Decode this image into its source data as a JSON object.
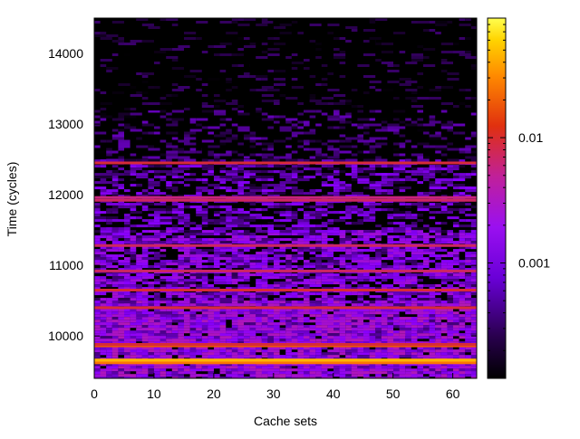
{
  "chart_data": {
    "type": "heatmap",
    "title": "",
    "xlabel": "Cache sets",
    "ylabel": "Time (cycles)",
    "xlim": [
      0,
      64
    ],
    "ylim": [
      9400,
      14500
    ],
    "x_ticks": [
      0,
      10,
      20,
      30,
      40,
      50,
      60
    ],
    "y_ticks": [
      10000,
      11000,
      12000,
      13000,
      14000
    ],
    "x_tick_labels": [
      "0",
      "10",
      "20",
      "30",
      "40",
      "50",
      "60"
    ],
    "y_tick_labels": [
      "10000",
      "11000",
      "12000",
      "13000",
      "14000"
    ],
    "colorbar": {
      "scale": "log",
      "range": [
        0.00012,
        0.09
      ],
      "ticks": [
        0.001,
        0.01
      ],
      "tick_labels": [
        "0.001",
        "0.01"
      ],
      "palette": [
        "#000000",
        "#3c006f",
        "#8a00ff",
        "#c0209a",
        "#e0300f",
        "#ff8000",
        "#ffd000",
        "#ffff40"
      ]
    },
    "bands": [
      {
        "y": 9640,
        "value": 0.08
      },
      {
        "y": 9660,
        "value": 0.025
      },
      {
        "y": 9620,
        "value": 0.012
      },
      {
        "y": 9860,
        "value": 0.008
      },
      {
        "y": 9880,
        "value": 0.004
      },
      {
        "y": 10400,
        "value": 0.004
      },
      {
        "y": 10650,
        "value": 0.004
      },
      {
        "y": 10920,
        "value": 0.003
      },
      {
        "y": 11280,
        "value": 0.003
      },
      {
        "y": 11920,
        "value": 0.003
      },
      {
        "y": 11960,
        "value": 0.0025
      },
      {
        "y": 12450,
        "value": 0.004
      }
    ],
    "background_density": [
      {
        "y_from": 9400,
        "y_to": 10500,
        "level": 0.0008
      },
      {
        "y_from": 10500,
        "y_to": 11500,
        "level": 0.0006
      },
      {
        "y_from": 11500,
        "y_to": 12500,
        "level": 0.0004
      },
      {
        "y_from": 12500,
        "y_to": 13200,
        "level": 0.00025
      },
      {
        "y_from": 13200,
        "y_to": 14500,
        "level": 0.00015
      }
    ]
  }
}
